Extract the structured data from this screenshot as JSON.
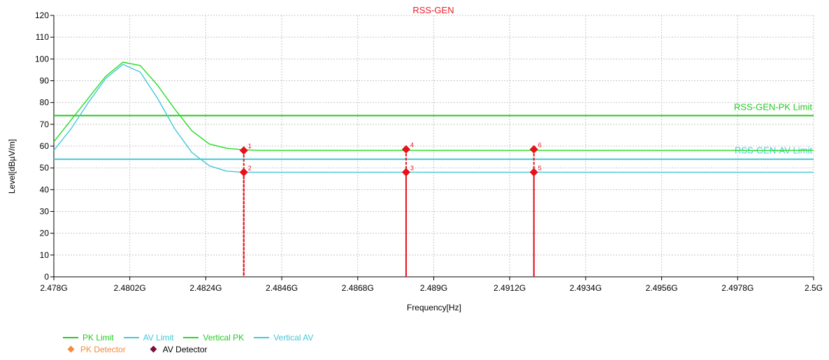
{
  "chart_data": {
    "type": "line",
    "title": "RSS-GEN",
    "title_color": "#e8202a",
    "xlabel": "Frequency[Hz]",
    "ylabel": "Level[dBµV/m]",
    "xlim": [
      2.478,
      2.5
    ],
    "ylim": [
      0,
      120
    ],
    "x_unit": "GHz",
    "grid": true,
    "legend_position": "bottom-left",
    "x_ticks": [
      {
        "value": 2.478,
        "label": "2.478G"
      },
      {
        "value": 2.4802,
        "label": "2.4802G"
      },
      {
        "value": 2.4824,
        "label": "2.4824G"
      },
      {
        "value": 2.4846,
        "label": "2.4846G"
      },
      {
        "value": 2.4868,
        "label": "2.4868G"
      },
      {
        "value": 2.489,
        "label": "2.489G"
      },
      {
        "value": 2.4912,
        "label": "2.4912G"
      },
      {
        "value": 2.4934,
        "label": "2.4934G"
      },
      {
        "value": 2.4956,
        "label": "2.4956G"
      },
      {
        "value": 2.4978,
        "label": "2.4978G"
      },
      {
        "value": 2.5,
        "label": "2.5G"
      }
    ],
    "y_ticks": [
      0,
      10,
      20,
      30,
      40,
      50,
      60,
      70,
      80,
      90,
      100,
      110,
      120
    ],
    "limit_lines": [
      {
        "name": "PK Limit",
        "value": 74,
        "color": "#22cc22",
        "label": "RSS-GEN-PK Limit"
      },
      {
        "name": "AV Limit",
        "value": 54,
        "color": "#44c8d8",
        "label": "RSS-GEN-AV Limit"
      }
    ],
    "series": [
      {
        "name": "Vertical PK",
        "color": "#22dd22",
        "x": [
          2.478,
          2.4785,
          2.479,
          2.4795,
          2.48,
          2.4805,
          2.481,
          2.4815,
          2.482,
          2.4825,
          2.483,
          2.4835,
          2.484,
          2.485,
          2.487,
          2.489,
          2.491,
          2.493,
          2.495,
          2.497,
          2.499,
          2.5
        ],
        "values": [
          62,
          72,
          82,
          92,
          98.5,
          97,
          88,
          77,
          67,
          61,
          59,
          58.3,
          58,
          58,
          58,
          58,
          58,
          58,
          58,
          58,
          58,
          58
        ]
      },
      {
        "name": "Vertical AV",
        "color": "#44c8d8",
        "x": [
          2.478,
          2.4785,
          2.479,
          2.4795,
          2.48,
          2.4805,
          2.481,
          2.4815,
          2.482,
          2.4825,
          2.483,
          2.4835,
          2.484,
          2.485,
          2.487,
          2.489,
          2.491,
          2.493,
          2.495,
          2.497,
          2.499,
          2.5
        ],
        "values": [
          58,
          68,
          80,
          91,
          97.5,
          94,
          82,
          68,
          57,
          51,
          48.5,
          48,
          48,
          48,
          48,
          48,
          48,
          48,
          48,
          48,
          48,
          48
        ]
      }
    ],
    "markers": [
      {
        "label": "1",
        "x": 2.4835,
        "y": 58,
        "type": "PK Detector"
      },
      {
        "label": "2",
        "x": 2.4835,
        "y": 48,
        "type": "AV Detector"
      },
      {
        "label": "3",
        "x": 2.4882,
        "y": 48,
        "type": "AV Detector"
      },
      {
        "label": "4",
        "x": 2.4882,
        "y": 58.5,
        "type": "PK Detector"
      },
      {
        "label": "5",
        "x": 2.4919,
        "y": 48,
        "type": "AV Detector"
      },
      {
        "label": "6",
        "x": 2.4919,
        "y": 58.5,
        "type": "PK Detector"
      }
    ],
    "marker_color": "#e8101a",
    "legend": [
      {
        "label": "PK Limit",
        "kind": "line",
        "color": "#22cc22"
      },
      {
        "label": "AV Limit",
        "kind": "line",
        "color": "#44c8d8"
      },
      {
        "label": "Vertical PK",
        "kind": "line",
        "color": "#22dd22"
      },
      {
        "label": "Vertical AV",
        "kind": "line",
        "color": "#44c8d8"
      },
      {
        "label": "PK Detector",
        "kind": "diamond",
        "color": "#f48a3c"
      },
      {
        "label": "AV Detector",
        "kind": "diamond",
        "color": "#7a1038"
      }
    ]
  }
}
